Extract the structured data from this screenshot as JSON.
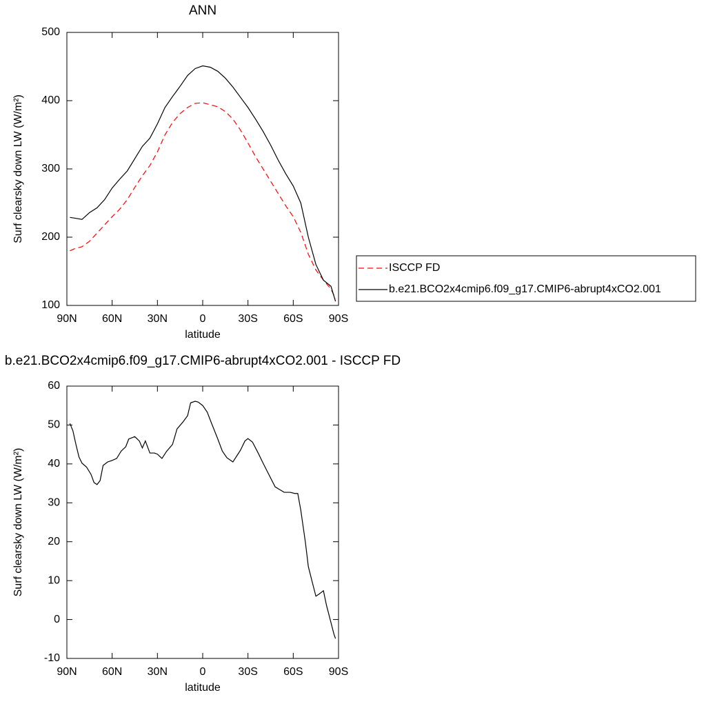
{
  "chart_data": [
    {
      "type": "line",
      "title": "ANN",
      "xlabel": "latitude",
      "ylabel": "Surf clearsky down LW (W/m²)",
      "x": [
        88,
        85,
        80,
        75,
        70,
        65,
        60,
        55,
        50,
        45,
        40,
        35,
        30,
        25,
        20,
        15,
        10,
        5,
        0,
        -5,
        -10,
        -15,
        -20,
        -25,
        -30,
        -35,
        -40,
        -45,
        -50,
        -55,
        -60,
        -65,
        -70,
        -75,
        -80,
        -85,
        -88
      ],
      "series": [
        {
          "name": "ISCCP FD",
          "color": "#ff0000",
          "dashed": true,
          "values": [
            180,
            183,
            186,
            194,
            206,
            218,
            230,
            241,
            255,
            273,
            290,
            305,
            325,
            350,
            368,
            381,
            390,
            396,
            397,
            394,
            391,
            384,
            373,
            357,
            338,
            318,
            300,
            282,
            264,
            246,
            230,
            207,
            175,
            152,
            137,
            124,
            110
          ]
        },
        {
          "name": "b.e21.BCO2x4cmip6.f09_g17.CMIP6-abrupt4xCO2.001",
          "color": "#000000",
          "dashed": false,
          "values": [
            229,
            228,
            226,
            236,
            243,
            255,
            272,
            285,
            297,
            315,
            333,
            345,
            366,
            390,
            406,
            421,
            437,
            447,
            451,
            449,
            443,
            433,
            420,
            405,
            390,
            373,
            355,
            335,
            313,
            293,
            275,
            250,
            200,
            160,
            137,
            128,
            106
          ]
        }
      ],
      "xlim": [
        90,
        -90
      ],
      "xticks": [
        {
          "value": 90,
          "label": "90N"
        },
        {
          "value": 60,
          "label": "60N"
        },
        {
          "value": 30,
          "label": "30N"
        },
        0,
        {
          "value": -30,
          "label": "30S"
        },
        {
          "value": -60,
          "label": "60S"
        },
        {
          "value": -90,
          "label": "90S"
        }
      ],
      "ylim": [
        100,
        500
      ],
      "yticks": [
        100,
        200,
        300,
        400,
        500
      ],
      "legend": "right"
    },
    {
      "type": "line",
      "title": "b.e21.BCO2x4cmip6.f09_g17.CMIP6-abrupt4xCO2.001 - ISCCP FD",
      "xlabel": "latitude",
      "ylabel": "Surf clearsky down LW (W/m²)",
      "x": [
        88,
        86,
        84,
        82,
        80,
        77,
        74,
        72,
        70,
        68,
        66,
        63,
        60,
        57,
        54,
        51,
        49,
        45,
        42,
        40,
        38,
        35,
        32,
        30,
        27,
        24,
        20,
        17,
        13,
        10,
        8,
        5,
        3,
        0,
        -3,
        -6,
        -10,
        -13,
        -16,
        -20,
        -23,
        -25,
        -28,
        -30,
        -33,
        -37,
        -40,
        -48,
        -51,
        -54,
        -58,
        -61,
        -63,
        -65,
        -68,
        -70,
        -73,
        -75,
        -77,
        -80,
        -82,
        -87,
        -88
      ],
      "series": [
        {
          "color": "#000000",
          "values": [
            50.4,
            48.5,
            45,
            41.8,
            40.2,
            39.2,
            37.3,
            35.2,
            34.7,
            35.7,
            39.6,
            40.5,
            40.9,
            41.4,
            43.3,
            44.4,
            46.4,
            47,
            45.9,
            44.1,
            45.9,
            42.8,
            42.8,
            42.5,
            41.4,
            43.2,
            45,
            49,
            50.8,
            52.4,
            55.7,
            56.1,
            55.9,
            55,
            53.3,
            50.3,
            46.4,
            43.3,
            41.6,
            40.5,
            42.3,
            43.5,
            45.9,
            46.5,
            45.6,
            42.6,
            40.2,
            34.1,
            33.4,
            32.7,
            32.7,
            32.4,
            32.4,
            28.1,
            20,
            13.6,
            9,
            6,
            6.5,
            7.4,
            3.7,
            -3.8,
            -4.9
          ]
        }
      ],
      "xlim": [
        90,
        -90
      ],
      "xticks": [
        {
          "value": 90,
          "label": "90N"
        },
        {
          "value": 60,
          "label": "60N"
        },
        {
          "value": 30,
          "label": "30N"
        },
        0,
        {
          "value": -30,
          "label": "30S"
        },
        {
          "value": -60,
          "label": "60S"
        },
        {
          "value": -90,
          "label": "90S"
        }
      ],
      "ylim": [
        -10,
        60
      ],
      "yticks": [
        -10,
        0,
        10,
        20,
        30,
        40,
        50,
        60
      ]
    }
  ]
}
